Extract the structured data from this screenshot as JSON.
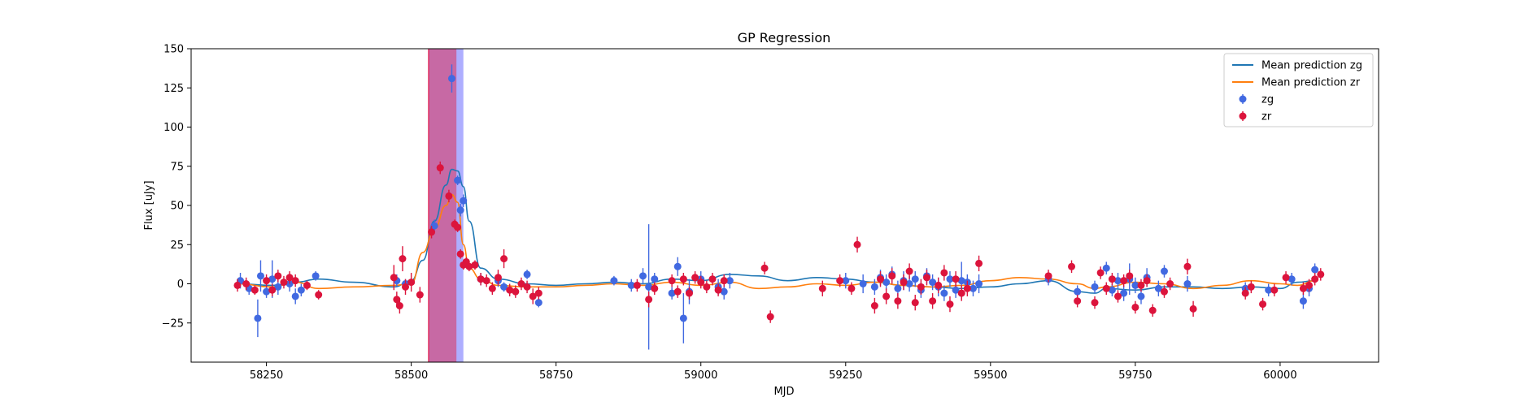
{
  "chart_data": {
    "type": "scatter",
    "title": "GP Regression",
    "xlabel": "MJD",
    "ylabel": "Flux [uJy]",
    "xlim": [
      58120,
      60170
    ],
    "ylim": [
      -50,
      150
    ],
    "xticks": [
      58250,
      58500,
      58750,
      59000,
      59250,
      59500,
      59750,
      60000
    ],
    "yticks": [
      -25,
      0,
      25,
      50,
      75,
      100,
      125,
      150
    ],
    "grid": false,
    "legend": {
      "placement": "top-right",
      "entries": [
        "Mean prediction zg",
        "Mean prediction zr",
        "zg",
        "zr"
      ]
    },
    "spans": [
      {
        "x0": 58530,
        "x1": 58590,
        "color": "#aaaaff"
      },
      {
        "x0": 58530,
        "x1": 58578,
        "color": "#c8659f"
      }
    ],
    "series": [
      {
        "name": "Mean prediction zg",
        "kind": "line",
        "color": "#1f77b4",
        "x": [
          58200,
          58260,
          58300,
          58340,
          58400,
          58470,
          58500,
          58520,
          58540,
          58560,
          58570,
          58580,
          58590,
          58600,
          58620,
          58650,
          58700,
          58750,
          58800,
          58850,
          58900,
          58950,
          59000,
          59050,
          59100,
          59150,
          59200,
          59250,
          59300,
          59350,
          59400,
          59450,
          59500,
          59550,
          59600,
          59650,
          59680,
          59700,
          59750,
          59800,
          59850,
          59900,
          59950,
          60000,
          60030,
          60060
        ],
        "y": [
          0,
          -1,
          1,
          3,
          1,
          -2,
          2,
          15,
          40,
          63,
          73,
          72,
          62,
          40,
          10,
          3,
          0,
          -1,
          0,
          1,
          0,
          3,
          2,
          6,
          5,
          2,
          4,
          3,
          1,
          -1,
          -2,
          -3,
          -2,
          0,
          2,
          -5,
          -6,
          -3,
          -4,
          -2,
          -2,
          -3,
          -2,
          -3,
          1,
          2
        ]
      },
      {
        "name": "Mean prediction zr",
        "kind": "line",
        "color": "#ff7f0e",
        "x": [
          58200,
          58260,
          58300,
          58340,
          58400,
          58470,
          58500,
          58520,
          58540,
          58560,
          58570,
          58580,
          58590,
          58600,
          58620,
          58650,
          58700,
          58750,
          58800,
          58850,
          58900,
          58950,
          59000,
          59050,
          59100,
          59150,
          59200,
          59250,
          59300,
          59350,
          59400,
          59450,
          59500,
          59550,
          59600,
          59650,
          59680,
          59700,
          59750,
          59800,
          59850,
          59900,
          59950,
          60000,
          60030,
          60060
        ],
        "y": [
          0,
          -2,
          1,
          -3,
          -2,
          -1,
          0,
          20,
          35,
          50,
          57,
          52,
          25,
          10,
          3,
          -1,
          -2,
          -2,
          -1,
          0,
          -1,
          1,
          -1,
          1,
          -3,
          -2,
          0,
          -1,
          1,
          -1,
          -2,
          -1,
          2,
          4,
          3,
          0,
          -3,
          -2,
          1,
          0,
          -3,
          -1,
          2,
          0,
          -1,
          2
        ]
      },
      {
        "name": "zg",
        "kind": "errorbar",
        "color": "#4169e1",
        "x": [
          58205,
          58220,
          58235,
          58240,
          58250,
          58260,
          58270,
          58290,
          58300,
          58310,
          58335,
          58475,
          58490,
          58540,
          58570,
          58580,
          58585,
          58590,
          58620,
          58650,
          58660,
          58700,
          58720,
          58850,
          58880,
          58900,
          58910,
          58920,
          58950,
          58960,
          58970,
          58980,
          59000,
          59030,
          59040,
          59050,
          59250,
          59280,
          59300,
          59310,
          59320,
          59330,
          59340,
          59350,
          59360,
          59370,
          59380,
          59390,
          59400,
          59410,
          59420,
          59430,
          59440,
          59450,
          59460,
          59470,
          59480,
          59600,
          59650,
          59680,
          59700,
          59710,
          59720,
          59730,
          59740,
          59750,
          59760,
          59770,
          59790,
          59800,
          59840,
          59940,
          59980,
          60020,
          60040,
          60050,
          60060
        ],
        "y": [
          2,
          -3,
          -22,
          5,
          -5,
          3,
          -2,
          0,
          -8,
          -4,
          5,
          2,
          0,
          37,
          131,
          66,
          47,
          53,
          3,
          2,
          -2,
          6,
          -12,
          2,
          -1,
          5,
          -2,
          3,
          -6,
          11,
          -22,
          -5,
          3,
          -2,
          -5,
          2,
          2,
          0,
          -2,
          4,
          1,
          6,
          -3,
          2,
          0,
          3,
          -4,
          5,
          1,
          -2,
          -6,
          3,
          -4,
          2,
          1,
          -3,
          0,
          3,
          -5,
          -2,
          10,
          -4,
          2,
          -6,
          3,
          -1,
          -8,
          4,
          -3,
          8,
          0,
          -3,
          -4,
          3,
          -11,
          -3,
          9
        ],
        "err": [
          5,
          4,
          12,
          10,
          4,
          12,
          5,
          5,
          5,
          4,
          3,
          4,
          3,
          4,
          9,
          3,
          4,
          4,
          4,
          4,
          3,
          3,
          3,
          3,
          4,
          5,
          40,
          4,
          4,
          6,
          16,
          8,
          5,
          5,
          5,
          5,
          5,
          6,
          5,
          5,
          5,
          5,
          5,
          6,
          5,
          5,
          5,
          5,
          5,
          6,
          5,
          5,
          5,
          12,
          5,
          5,
          6,
          4,
          4,
          4,
          4,
          4,
          5,
          5,
          10,
          5,
          5,
          6,
          5,
          4,
          5,
          4,
          4,
          4,
          5,
          5,
          4
        ]
      },
      {
        "name": "zr",
        "kind": "errorbar",
        "color": "#dc143c",
        "x": [
          58200,
          58215,
          58230,
          58250,
          58260,
          58270,
          58280,
          58290,
          58300,
          58320,
          58340,
          58470,
          58475,
          58480,
          58485,
          58490,
          58500,
          58515,
          58535,
          58550,
          58565,
          58575,
          58580,
          58585,
          58590,
          58595,
          58600,
          58610,
          58620,
          58630,
          58640,
          58650,
          58660,
          58670,
          58680,
          58690,
          58700,
          58710,
          58720,
          58890,
          58910,
          58920,
          58950,
          58960,
          58970,
          58980,
          58990,
          59000,
          59010,
          59020,
          59030,
          59040,
          59110,
          59120,
          59210,
          59240,
          59260,
          59270,
          59300,
          59310,
          59320,
          59330,
          59340,
          59350,
          59360,
          59370,
          59380,
          59390,
          59400,
          59410,
          59420,
          59430,
          59440,
          59450,
          59460,
          59480,
          59600,
          59640,
          59650,
          59680,
          59690,
          59700,
          59710,
          59720,
          59730,
          59740,
          59750,
          59760,
          59770,
          59780,
          59800,
          59810,
          59840,
          59850,
          59940,
          59950,
          59970,
          59990,
          60010,
          60040,
          60050,
          60060,
          60070
        ],
        "y": [
          -1,
          0,
          -4,
          2,
          -4,
          5,
          1,
          4,
          2,
          -1,
          -7,
          4,
          -10,
          -14,
          16,
          -2,
          1,
          -7,
          33,
          74,
          56,
          38,
          36,
          19,
          12,
          14,
          11,
          12,
          3,
          2,
          -3,
          4,
          16,
          -4,
          -5,
          0,
          -2,
          -8,
          -6,
          -1,
          -10,
          -3,
          2,
          -5,
          3,
          -6,
          4,
          1,
          -2,
          3,
          -4,
          2,
          10,
          -21,
          -3,
          2,
          -3,
          25,
          -14,
          3,
          -8,
          5,
          -11,
          1,
          8,
          -12,
          -2,
          4,
          -11,
          -1,
          7,
          -13,
          3,
          -6,
          -3,
          13,
          5,
          11,
          -11,
          -12,
          7,
          -3,
          3,
          -8,
          2,
          5,
          -15,
          -1,
          2,
          -17,
          -5,
          0,
          11,
          -16,
          -6,
          -2,
          -13,
          -4,
          4,
          -3,
          -1,
          3,
          6
        ],
        "err": [
          4,
          4,
          3,
          4,
          4,
          4,
          4,
          4,
          4,
          3,
          3,
          8,
          5,
          5,
          8,
          5,
          6,
          5,
          4,
          4,
          4,
          3,
          3,
          3,
          3,
          3,
          3,
          3,
          4,
          4,
          4,
          5,
          6,
          4,
          4,
          4,
          4,
          5,
          4,
          4,
          5,
          4,
          4,
          4,
          4,
          4,
          4,
          4,
          4,
          4,
          4,
          4,
          4,
          4,
          5,
          4,
          4,
          5,
          5,
          5,
          5,
          5,
          5,
          5,
          5,
          5,
          5,
          5,
          5,
          5,
          5,
          5,
          5,
          5,
          5,
          5,
          4,
          4,
          4,
          4,
          4,
          4,
          4,
          4,
          4,
          4,
          4,
          4,
          4,
          4,
          4,
          4,
          5,
          5,
          4,
          4,
          4,
          4,
          4,
          4,
          4,
          4,
          4
        ]
      }
    ]
  }
}
